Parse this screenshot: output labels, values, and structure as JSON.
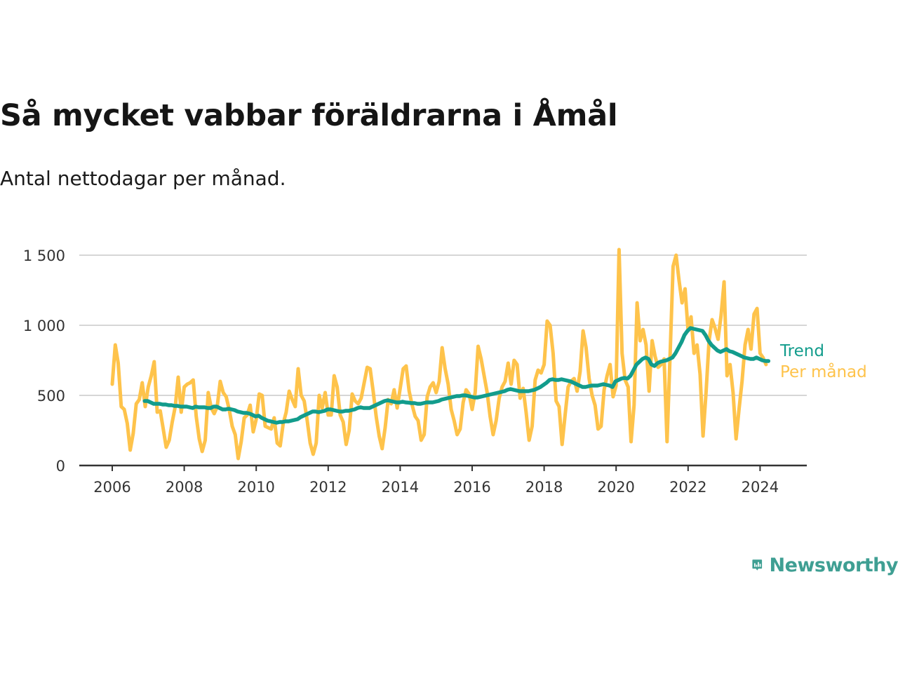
{
  "title": "Så mycket vabbar föräldrarna i Åmål",
  "subtitle": "Antal nettodagar per månad.",
  "brand": {
    "name": "Newsworthy",
    "color": "#3f9f93",
    "icon": "newsworthy-logo-icon"
  },
  "chart_data": {
    "type": "line",
    "title": "Så mycket vabbar föräldrarna i Åmål",
    "subtitle": "Antal nettodagar per månad.",
    "xlabel": "",
    "ylabel": "",
    "xlim": [
      2005.5,
      2025.3
    ],
    "ylim": [
      0,
      1600
    ],
    "y_ticks": [
      0,
      500,
      1000,
      1500
    ],
    "y_tick_labels": [
      "0",
      "500",
      "1 000",
      "1 500"
    ],
    "x_ticks": [
      2006,
      2008,
      2010,
      2012,
      2014,
      2016,
      2018,
      2020,
      2022,
      2024
    ],
    "x_tick_labels": [
      "2006",
      "2008",
      "2010",
      "2012",
      "2014",
      "2016",
      "2018",
      "2020",
      "2022",
      "2024"
    ],
    "grid": true,
    "legend": "inline labels at line ends",
    "colors": {
      "per_month": "#fec34b",
      "trend": "#129c8c"
    },
    "series": [
      {
        "name": "Per månad",
        "color": "#fec34b",
        "x_start": 2006.0,
        "step": 0.08333,
        "values": [
          580,
          860,
          730,
          420,
          400,
          300,
          110,
          230,
          440,
          470,
          590,
          420,
          560,
          640,
          740,
          380,
          390,
          260,
          130,
          180,
          310,
          420,
          630,
          380,
          560,
          580,
          590,
          610,
          350,
          190,
          100,
          180,
          520,
          410,
          370,
          420,
          600,
          520,
          490,
          400,
          280,
          220,
          50,
          170,
          340,
          360,
          430,
          240,
          330,
          510,
          500,
          280,
          270,
          260,
          340,
          160,
          140,
          300,
          380,
          530,
          470,
          420,
          690,
          500,
          460,
          320,
          160,
          80,
          160,
          500,
          410,
          520,
          360,
          360,
          640,
          560,
          360,
          310,
          150,
          250,
          510,
          460,
          440,
          480,
          590,
          700,
          690,
          530,
          350,
          210,
          120,
          270,
          470,
          440,
          540,
          410,
          550,
          690,
          710,
          530,
          430,
          350,
          320,
          180,
          220,
          490,
          560,
          590,
          520,
          600,
          840,
          690,
          580,
          400,
          320,
          220,
          260,
          450,
          540,
          510,
          400,
          520,
          850,
          760,
          640,
          520,
          350,
          220,
          320,
          480,
          560,
          600,
          730,
          580,
          750,
          720,
          480,
          550,
          380,
          180,
          280,
          610,
          680,
          660,
          720,
          1030,
          1000,
          800,
          460,
          420,
          150,
          360,
          560,
          600,
          620,
          530,
          670,
          960,
          840,
          620,
          500,
          430,
          260,
          280,
          540,
          640,
          720,
          490,
          570,
          1540,
          800,
          610,
          560,
          170,
          430,
          1160,
          890,
          970,
          860,
          530,
          890,
          780,
          700,
          720,
          760,
          170,
          780,
          1420,
          1500,
          1320,
          1160,
          1260,
          960,
          1060,
          800,
          860,
          650,
          210,
          520,
          890,
          1040,
          980,
          900,
          1070,
          1310,
          640,
          720,
          520,
          190,
          400,
          600,
          860,
          970,
          830,
          1080,
          1120,
          800,
          770,
          720
        ]
      },
      {
        "name": "Trend",
        "color": "#129c8c",
        "x_start": 2006.9,
        "step": 0.08333,
        "values": [
          460,
          460,
          450,
          440,
          440,
          440,
          435,
          435,
          430,
          430,
          425,
          425,
          420,
          420,
          420,
          415,
          410,
          420,
          415,
          415,
          415,
          410,
          410,
          420,
          420,
          410,
          400,
          400,
          405,
          400,
          395,
          385,
          380,
          375,
          375,
          370,
          360,
          350,
          355,
          340,
          330,
          320,
          315,
          310,
          305,
          310,
          310,
          315,
          315,
          320,
          325,
          330,
          345,
          355,
          365,
          375,
          385,
          385,
          380,
          385,
          390,
          400,
          400,
          395,
          390,
          385,
          385,
          390,
          390,
          395,
          400,
          410,
          415,
          410,
          410,
          410,
          420,
          430,
          440,
          450,
          460,
          465,
          460,
          455,
          450,
          450,
          455,
          450,
          448,
          445,
          445,
          440,
          440,
          445,
          450,
          450,
          450,
          455,
          460,
          470,
          475,
          480,
          485,
          490,
          495,
          495,
          500,
          500,
          495,
          490,
          485,
          485,
          490,
          495,
          500,
          505,
          510,
          515,
          520,
          525,
          530,
          540,
          545,
          540,
          535,
          530,
          530,
          530,
          530,
          535,
          540,
          550,
          560,
          575,
          590,
          610,
          615,
          610,
          610,
          615,
          610,
          605,
          600,
          590,
          580,
          570,
          560,
          560,
          565,
          570,
          570,
          570,
          575,
          580,
          575,
          570,
          560,
          600,
          610,
          620,
          625,
          620,
          640,
          680,
          720,
          740,
          760,
          770,
          760,
          720,
          710,
          730,
          740,
          745,
          750,
          760,
          770,
          800,
          840,
          880,
          930,
          960,
          980,
          975,
          970,
          965,
          960,
          930,
          890,
          860,
          840,
          820,
          810,
          820,
          830,
          815,
          810,
          800,
          790,
          780,
          770,
          765,
          760,
          760,
          770,
          760,
          750,
          745,
          745
        ]
      }
    ]
  }
}
